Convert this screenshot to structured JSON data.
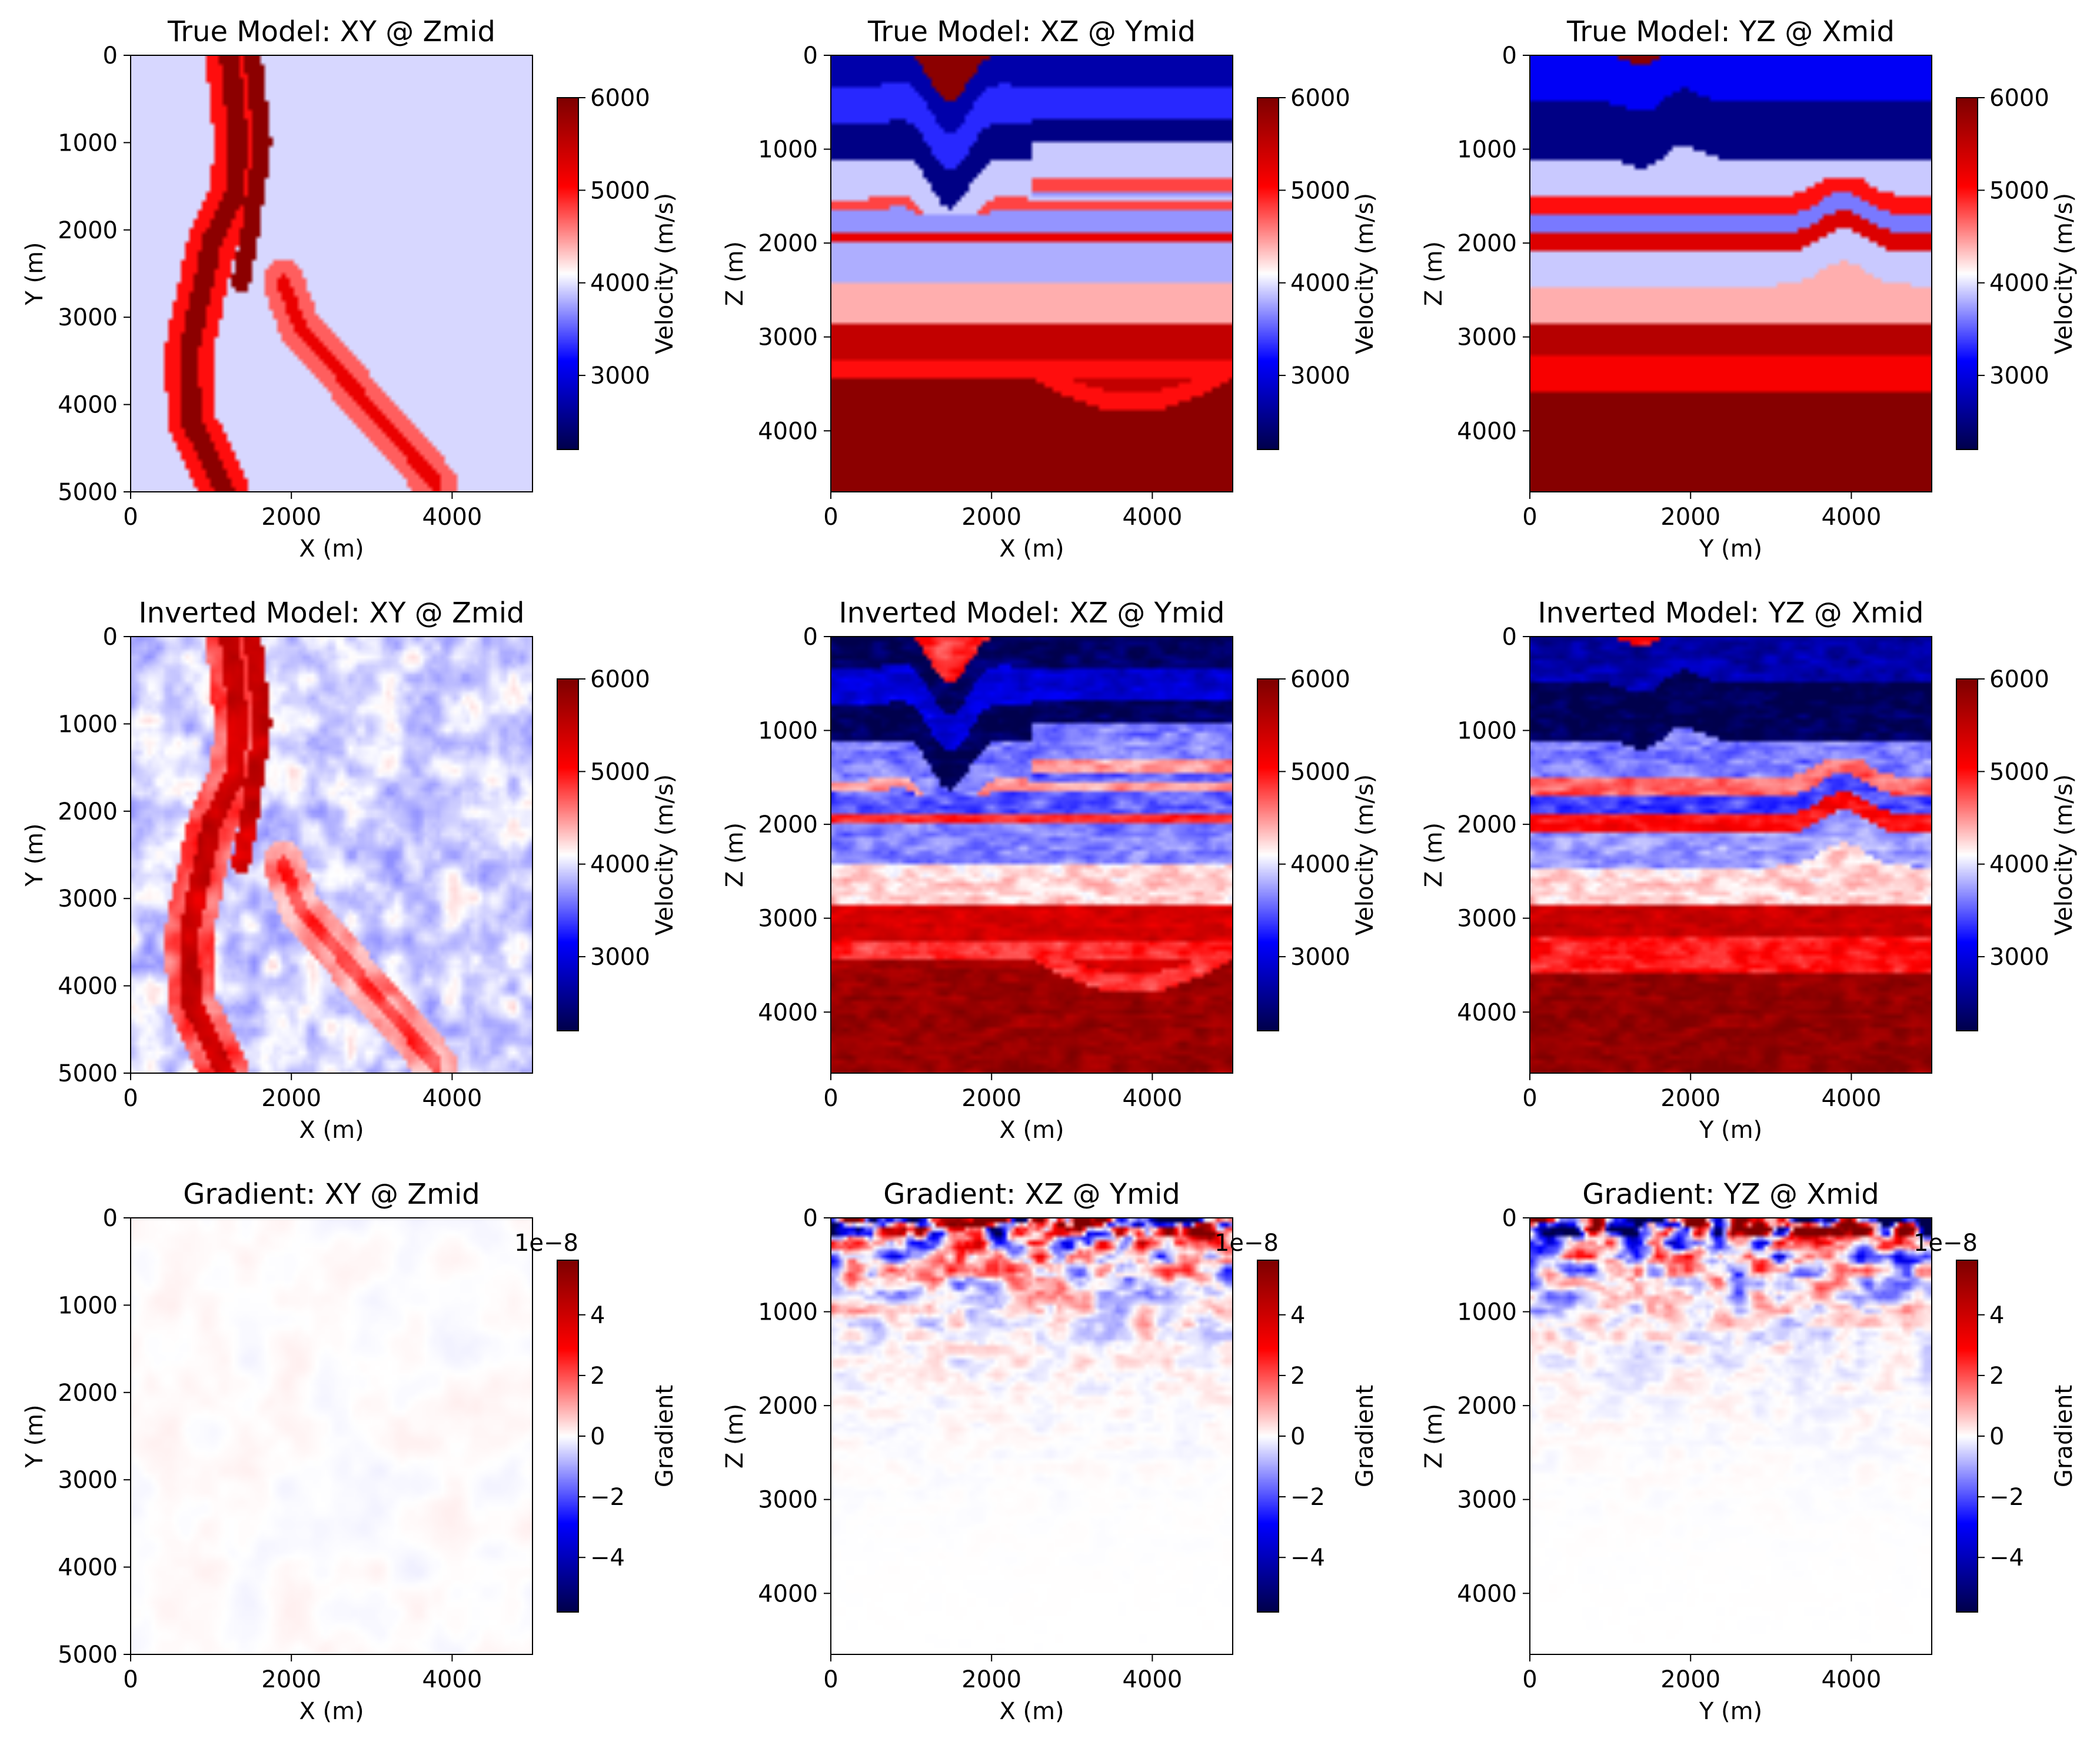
{
  "figure": {
    "colormap": [
      "#00004c",
      "#0000ff",
      "#ffffff",
      "#ff0000",
      "#7f0000"
    ],
    "panels": [
      {
        "title": "True Model: XY @ Zmid",
        "xlabel": "X (m)",
        "ylabel": "Y (m)",
        "kind": "xy",
        "field": "true",
        "x_ticks": [
          "0",
          "2000",
          "4000"
        ],
        "y_ticks": [
          "0",
          "1000",
          "2000",
          "3000",
          "4000",
          "5000"
        ],
        "colorbar": {
          "label": "Velocity (m/s)",
          "ticks": [
            "3000",
            "4000",
            "5000",
            "6000"
          ],
          "offset": ""
        }
      },
      {
        "title": "True Model: XZ @ Ymid",
        "xlabel": "X (m)",
        "ylabel": "Z (m)",
        "kind": "xz",
        "field": "true",
        "x_ticks": [
          "0",
          "2000",
          "4000"
        ],
        "y_ticks": [
          "0",
          "1000",
          "2000",
          "3000",
          "4000"
        ],
        "colorbar": {
          "label": "Velocity (m/s)",
          "ticks": [
            "3000",
            "4000",
            "5000",
            "6000"
          ],
          "offset": ""
        }
      },
      {
        "title": "True Model: YZ @ Xmid",
        "xlabel": "Y (m)",
        "ylabel": "Z (m)",
        "kind": "yz",
        "field": "true",
        "x_ticks": [
          "0",
          "2000",
          "4000"
        ],
        "y_ticks": [
          "0",
          "1000",
          "2000",
          "3000",
          "4000"
        ],
        "colorbar": {
          "label": "Velocity (m/s)",
          "ticks": [
            "3000",
            "4000",
            "5000",
            "6000"
          ],
          "offset": ""
        }
      },
      {
        "title": "Inverted Model: XY @ Zmid",
        "xlabel": "X (m)",
        "ylabel": "Y (m)",
        "kind": "xy",
        "field": "inv",
        "x_ticks": [
          "0",
          "2000",
          "4000"
        ],
        "y_ticks": [
          "0",
          "1000",
          "2000",
          "3000",
          "4000",
          "5000"
        ],
        "colorbar": {
          "label": "Velocity (m/s)",
          "ticks": [
            "3000",
            "4000",
            "5000",
            "6000"
          ],
          "offset": ""
        }
      },
      {
        "title": "Inverted Model: XZ @ Ymid",
        "xlabel": "X (m)",
        "ylabel": "Z (m)",
        "kind": "xz",
        "field": "inv",
        "x_ticks": [
          "0",
          "2000",
          "4000"
        ],
        "y_ticks": [
          "0",
          "1000",
          "2000",
          "3000",
          "4000"
        ],
        "colorbar": {
          "label": "Velocity (m/s)",
          "ticks": [
            "3000",
            "4000",
            "5000",
            "6000"
          ],
          "offset": ""
        }
      },
      {
        "title": "Inverted Model: YZ @ Xmid",
        "xlabel": "Y (m)",
        "ylabel": "Z (m)",
        "kind": "yz",
        "field": "inv",
        "x_ticks": [
          "0",
          "2000",
          "4000"
        ],
        "y_ticks": [
          "0",
          "1000",
          "2000",
          "3000",
          "4000"
        ],
        "colorbar": {
          "label": "Velocity (m/s)",
          "ticks": [
            "3000",
            "4000",
            "5000",
            "6000"
          ],
          "offset": ""
        }
      },
      {
        "title": "Gradient: XY @ Zmid",
        "xlabel": "X (m)",
        "ylabel": "Y (m)",
        "kind": "xy",
        "field": "grad",
        "x_ticks": [
          "0",
          "2000",
          "4000"
        ],
        "y_ticks": [
          "0",
          "1000",
          "2000",
          "3000",
          "4000",
          "5000"
        ],
        "colorbar": {
          "label": "Gradient",
          "ticks": [
            "−4",
            "−2",
            "0",
            "2",
            "4"
          ],
          "offset": "1e−8"
        }
      },
      {
        "title": "Gradient: XZ @ Ymid",
        "xlabel": "X (m)",
        "ylabel": "Z (m)",
        "kind": "xz",
        "field": "grad",
        "x_ticks": [
          "0",
          "2000",
          "4000"
        ],
        "y_ticks": [
          "0",
          "1000",
          "2000",
          "3000",
          "4000"
        ],
        "colorbar": {
          "label": "Gradient",
          "ticks": [
            "−4",
            "−2",
            "0",
            "2",
            "4"
          ],
          "offset": "1e−8"
        }
      },
      {
        "title": "Gradient: YZ @ Xmid",
        "xlabel": "Y (m)",
        "ylabel": "Z (m)",
        "kind": "yz",
        "field": "grad",
        "x_ticks": [
          "0",
          "2000",
          "4000"
        ],
        "y_ticks": [
          "0",
          "1000",
          "2000",
          "3000",
          "4000"
        ],
        "colorbar": {
          "label": "Gradient",
          "ticks": [
            "−4",
            "−2",
            "0",
            "2",
            "4"
          ],
          "offset": "1e−8"
        }
      }
    ]
  },
  "chart_data": {
    "type": "heatmap",
    "title": "",
    "panels": [
      {
        "title": "True Model: XY @ Zmid",
        "xlabel": "X (m)",
        "ylabel": "Y (m)",
        "xlim": [
          0,
          5000
        ],
        "ylim": [
          5000,
          0
        ],
        "clim": [
          2200,
          6000
        ],
        "units": "m/s"
      },
      {
        "title": "True Model: XZ @ Ymid",
        "xlabel": "X (m)",
        "ylabel": "Z (m)",
        "xlim": [
          0,
          5000
        ],
        "ylim": [
          4650,
          0
        ],
        "clim": [
          2200,
          6000
        ],
        "units": "m/s"
      },
      {
        "title": "True Model: YZ @ Xmid",
        "xlabel": "Y (m)",
        "ylabel": "Z (m)",
        "xlim": [
          0,
          5000
        ],
        "ylim": [
          4650,
          0
        ],
        "clim": [
          2200,
          6000
        ],
        "units": "m/s"
      },
      {
        "title": "Inverted Model: XY @ Zmid",
        "xlabel": "X (m)",
        "ylabel": "Y (m)",
        "xlim": [
          0,
          5000
        ],
        "ylim": [
          5000,
          0
        ],
        "clim": [
          2200,
          6000
        ],
        "units": "m/s"
      },
      {
        "title": "Inverted Model: XZ @ Ymid",
        "xlabel": "X (m)",
        "ylabel": "Z (m)",
        "xlim": [
          0,
          5000
        ],
        "ylim": [
          4650,
          0
        ],
        "clim": [
          2200,
          6000
        ],
        "units": "m/s"
      },
      {
        "title": "Inverted Model: YZ @ Xmid",
        "xlabel": "Y (m)",
        "ylabel": "Z (m)",
        "xlim": [
          0,
          5000
        ],
        "ylim": [
          4650,
          0
        ],
        "clim": [
          2200,
          6000
        ],
        "units": "m/s"
      },
      {
        "title": "Gradient: XY @ Zmid",
        "xlabel": "X (m)",
        "ylabel": "Y (m)",
        "xlim": [
          0,
          5000
        ],
        "ylim": [
          5000,
          0
        ],
        "clim": [
          -5.8e-08,
          5.8e-08
        ]
      },
      {
        "title": "Gradient: XZ @ Ymid",
        "xlabel": "X (m)",
        "ylabel": "Z (m)",
        "xlim": [
          0,
          5000
        ],
        "ylim": [
          4650,
          0
        ],
        "clim": [
          -5.8e-08,
          5.8e-08
        ]
      },
      {
        "title": "Gradient: YZ @ Xmid",
        "xlabel": "Y (m)",
        "ylabel": "Z (m)",
        "xlim": [
          0,
          5000
        ],
        "ylim": [
          4650,
          0
        ],
        "clim": [
          -5.8e-08,
          5.8e-08
        ]
      }
    ],
    "layers_xz": [
      {
        "z": [
          0,
          330
        ],
        "v": 2700
      },
      {
        "z": [
          330,
          730
        ],
        "v": 3300
      },
      {
        "z": [
          730,
          1130
        ],
        "v": 2500
      },
      {
        "z": [
          1130,
          1530
        ],
        "v": 3900
      },
      {
        "z": [
          1530,
          1650
        ],
        "v": 4800
      },
      {
        "z": [
          1650,
          1900
        ],
        "v": 3700
      },
      {
        "z": [
          1900,
          2000
        ],
        "v": 5200
      },
      {
        "z": [
          2000,
          2400
        ],
        "v": 3800
      },
      {
        "z": [
          2400,
          2850
        ],
        "v": 4400
      },
      {
        "z": [
          2850,
          3250
        ],
        "v": 5500
      },
      {
        "z": [
          3250,
          3450
        ],
        "v": 5000
      },
      {
        "z": [
          3450,
          4650
        ],
        "v": 5900
      }
    ],
    "layers_yz": [
      {
        "z": [
          0,
          500
        ],
        "v": 3100
      },
      {
        "z": [
          500,
          1100
        ],
        "v": 2500
      },
      {
        "z": [
          1100,
          1500
        ],
        "v": 3900
      },
      {
        "z": [
          1500,
          1700
        ],
        "v": 5000
      },
      {
        "z": [
          1700,
          1900
        ],
        "v": 3600
      },
      {
        "z": [
          1900,
          2100
        ],
        "v": 5300
      },
      {
        "z": [
          2100,
          2450
        ],
        "v": 3900
      },
      {
        "z": [
          2450,
          2850
        ],
        "v": 4400
      },
      {
        "z": [
          2850,
          3200
        ],
        "v": 5600
      },
      {
        "z": [
          3200,
          3600
        ],
        "v": 5100
      },
      {
        "z": [
          3600,
          4650
        ],
        "v": 5950
      }
    ],
    "background_xy": 3950
  }
}
